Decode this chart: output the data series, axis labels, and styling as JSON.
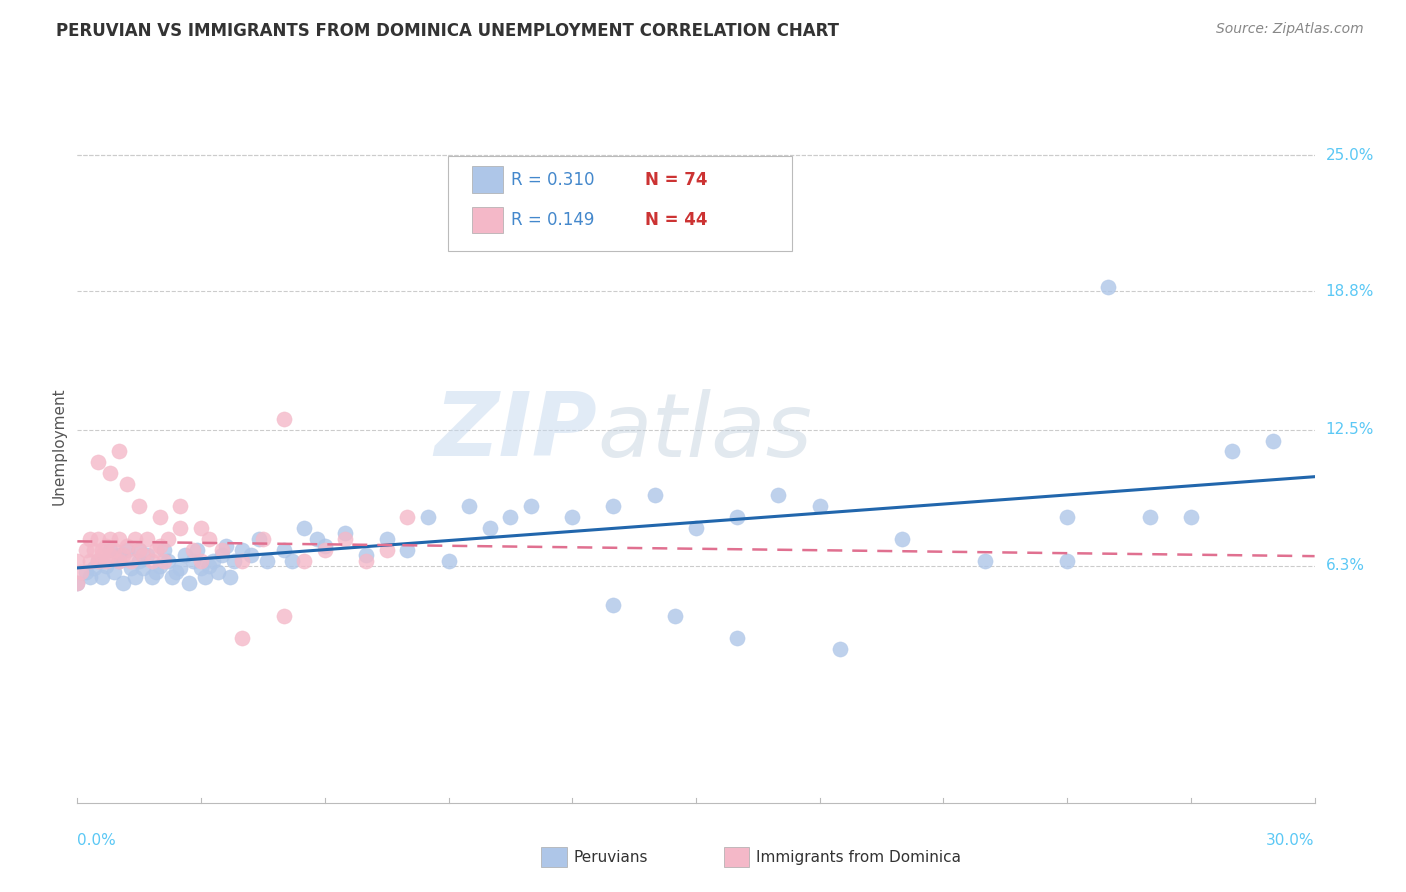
{
  "title": "PERUVIAN VS IMMIGRANTS FROM DOMINICA UNEMPLOYMENT CORRELATION CHART",
  "source": "Source: ZipAtlas.com",
  "ylabel": "Unemployment",
  "ytick_vals": [
    0.063,
    0.125,
    0.188,
    0.25
  ],
  "ytick_labels": [
    "6.3%",
    "12.5%",
    "18.8%",
    "25.0%"
  ],
  "xlim": [
    0.0,
    0.3
  ],
  "ylim": [
    -0.045,
    0.28
  ],
  "blue_color": "#aec6e8",
  "pink_color": "#f4b8c8",
  "blue_line_color": "#2166ac",
  "pink_line_color": "#e07090",
  "watermark_zip": "ZIP",
  "watermark_atlas": "atlas",
  "blue_scatter_x": [
    0.0,
    0.002,
    0.003,
    0.004,
    0.005,
    0.006,
    0.007,
    0.008,
    0.009,
    0.01,
    0.01,
    0.011,
    0.012,
    0.013,
    0.014,
    0.015,
    0.015,
    0.016,
    0.017,
    0.018,
    0.019,
    0.02,
    0.021,
    0.022,
    0.023,
    0.024,
    0.025,
    0.026,
    0.027,
    0.028,
    0.029,
    0.03,
    0.031,
    0.032,
    0.033,
    0.034,
    0.035,
    0.036,
    0.037,
    0.038,
    0.04,
    0.042,
    0.044,
    0.046,
    0.05,
    0.052,
    0.055,
    0.058,
    0.06,
    0.065,
    0.07,
    0.075,
    0.08,
    0.085,
    0.09,
    0.095,
    0.1,
    0.105,
    0.11,
    0.12,
    0.13,
    0.14,
    0.15,
    0.16,
    0.17,
    0.18,
    0.2,
    0.22,
    0.24,
    0.25,
    0.26,
    0.27,
    0.28,
    0.29
  ],
  "blue_scatter_y": [
    0.055,
    0.06,
    0.058,
    0.062,
    0.065,
    0.058,
    0.063,
    0.07,
    0.06,
    0.065,
    0.068,
    0.055,
    0.07,
    0.062,
    0.058,
    0.065,
    0.07,
    0.062,
    0.068,
    0.058,
    0.06,
    0.063,
    0.07,
    0.065,
    0.058,
    0.06,
    0.062,
    0.068,
    0.055,
    0.065,
    0.07,
    0.062,
    0.058,
    0.063,
    0.065,
    0.06,
    0.068,
    0.072,
    0.058,
    0.065,
    0.07,
    0.068,
    0.075,
    0.065,
    0.07,
    0.065,
    0.08,
    0.075,
    0.072,
    0.078,
    0.068,
    0.075,
    0.07,
    0.085,
    0.065,
    0.09,
    0.08,
    0.085,
    0.09,
    0.085,
    0.09,
    0.095,
    0.08,
    0.085,
    0.095,
    0.09,
    0.075,
    0.065,
    0.085,
    0.19,
    0.085,
    0.085,
    0.115,
    0.12
  ],
  "blue_scatter_x_outliers": [
    0.105,
    0.24,
    0.13,
    0.145,
    0.16,
    0.185
  ],
  "blue_scatter_y_outliers": [
    0.215,
    0.065,
    0.045,
    0.04,
    0.03,
    0.025
  ],
  "pink_scatter_x": [
    0.0,
    0.0,
    0.001,
    0.002,
    0.003,
    0.003,
    0.004,
    0.005,
    0.005,
    0.006,
    0.006,
    0.007,
    0.007,
    0.008,
    0.008,
    0.009,
    0.01,
    0.01,
    0.011,
    0.012,
    0.013,
    0.014,
    0.015,
    0.016,
    0.017,
    0.018,
    0.019,
    0.02,
    0.021,
    0.022,
    0.025,
    0.028,
    0.03,
    0.032,
    0.035,
    0.04,
    0.045,
    0.05,
    0.055,
    0.06,
    0.065,
    0.07,
    0.075,
    0.08
  ],
  "pink_scatter_y": [
    0.055,
    0.065,
    0.06,
    0.07,
    0.075,
    0.065,
    0.07,
    0.065,
    0.075,
    0.068,
    0.07,
    0.072,
    0.065,
    0.075,
    0.068,
    0.07,
    0.065,
    0.075,
    0.068,
    0.072,
    0.065,
    0.075,
    0.07,
    0.068,
    0.075,
    0.065,
    0.07,
    0.072,
    0.065,
    0.075,
    0.08,
    0.07,
    0.065,
    0.075,
    0.07,
    0.065,
    0.075,
    0.13,
    0.065,
    0.07,
    0.075,
    0.065,
    0.07,
    0.085
  ],
  "pink_scatter_x_extra": [
    0.005,
    0.008,
    0.01,
    0.012,
    0.015,
    0.02,
    0.025,
    0.03,
    0.04,
    0.05
  ],
  "pink_scatter_y_extra": [
    0.11,
    0.105,
    0.115,
    0.1,
    0.09,
    0.085,
    0.09,
    0.08,
    0.03,
    0.04
  ]
}
